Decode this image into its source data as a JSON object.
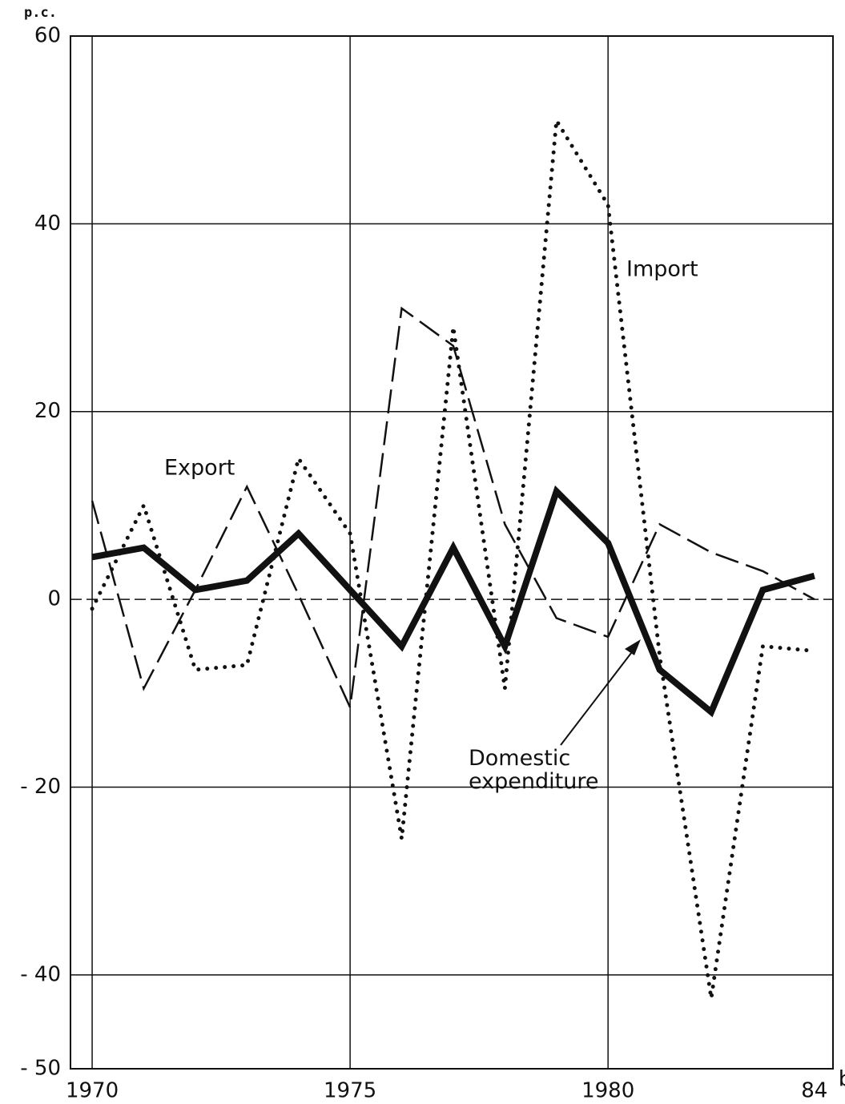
{
  "chart_data": {
    "type": "line",
    "y_label": "p.c.",
    "x": [
      1970,
      1971,
      1972,
      1973,
      1974,
      1975,
      1976,
      1977,
      1978,
      1979,
      1980,
      1981,
      1982,
      1983,
      1984
    ],
    "series": [
      {
        "name": "Export",
        "color": "#111111",
        "style": "dashed",
        "values": [
          10.5,
          -9.5,
          1,
          12,
          0.5,
          -11.5,
          31,
          27,
          8,
          -2,
          -4,
          8,
          5,
          3,
          0
        ]
      },
      {
        "name": "Import",
        "color": "#111111",
        "style": "dotted",
        "values": [
          -1,
          10,
          -7.5,
          -7,
          15,
          7,
          -25.5,
          29,
          -9.5,
          51,
          42,
          -6,
          -42.5,
          -5,
          -5.5
        ]
      },
      {
        "name": "Domestic expenditure",
        "color": "#111111",
        "style": "solid",
        "values": [
          4.5,
          5.5,
          1,
          2,
          7,
          1,
          -5,
          5.5,
          -5,
          11.5,
          6,
          -7.5,
          -12,
          1,
          2.5
        ]
      }
    ],
    "xlim": [
      1969.58,
      1984.36
    ],
    "xticks": [
      1970,
      1975,
      1980,
      {
        "value": 1984,
        "label": "84"
      }
    ],
    "x_tick_note": "b",
    "ylim": [
      -50,
      60
    ],
    "yticks": [
      60,
      40,
      20,
      0,
      {
        "value": -20,
        "label": "- 20"
      },
      {
        "value": -40,
        "label": "- 40"
      },
      {
        "value": -50,
        "label": "- 50"
      }
    ],
    "grid": true
  }
}
